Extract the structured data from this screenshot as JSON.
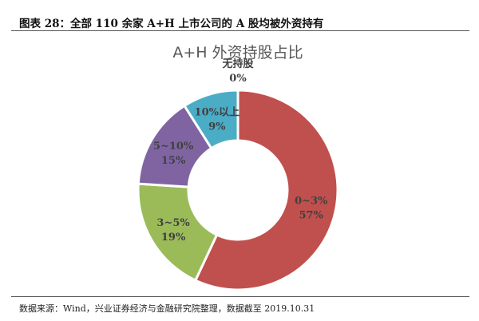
{
  "header": {
    "title": "图表 28：全部 110 余家 A+H 上市公司的 A 股均被外资持有"
  },
  "footer": {
    "source": "数据来源：Wind，兴业证券经济与金融研究院整理，数据截至 2019.10.31"
  },
  "chart_data": {
    "type": "pie",
    "donut": true,
    "title": "A+H 外资持股占比",
    "categories": [
      "0~3%",
      "3~5%",
      "5~10%",
      "10%以上",
      "无持股"
    ],
    "values": [
      57,
      19,
      15,
      9,
      0
    ],
    "labels": [
      "57%",
      "19%",
      "15%",
      "9%",
      "0%"
    ],
    "colors": [
      "#C0504D",
      "#9BBB59",
      "#8064A2",
      "#4BACC6",
      "#F79646"
    ],
    "legend": "none"
  }
}
